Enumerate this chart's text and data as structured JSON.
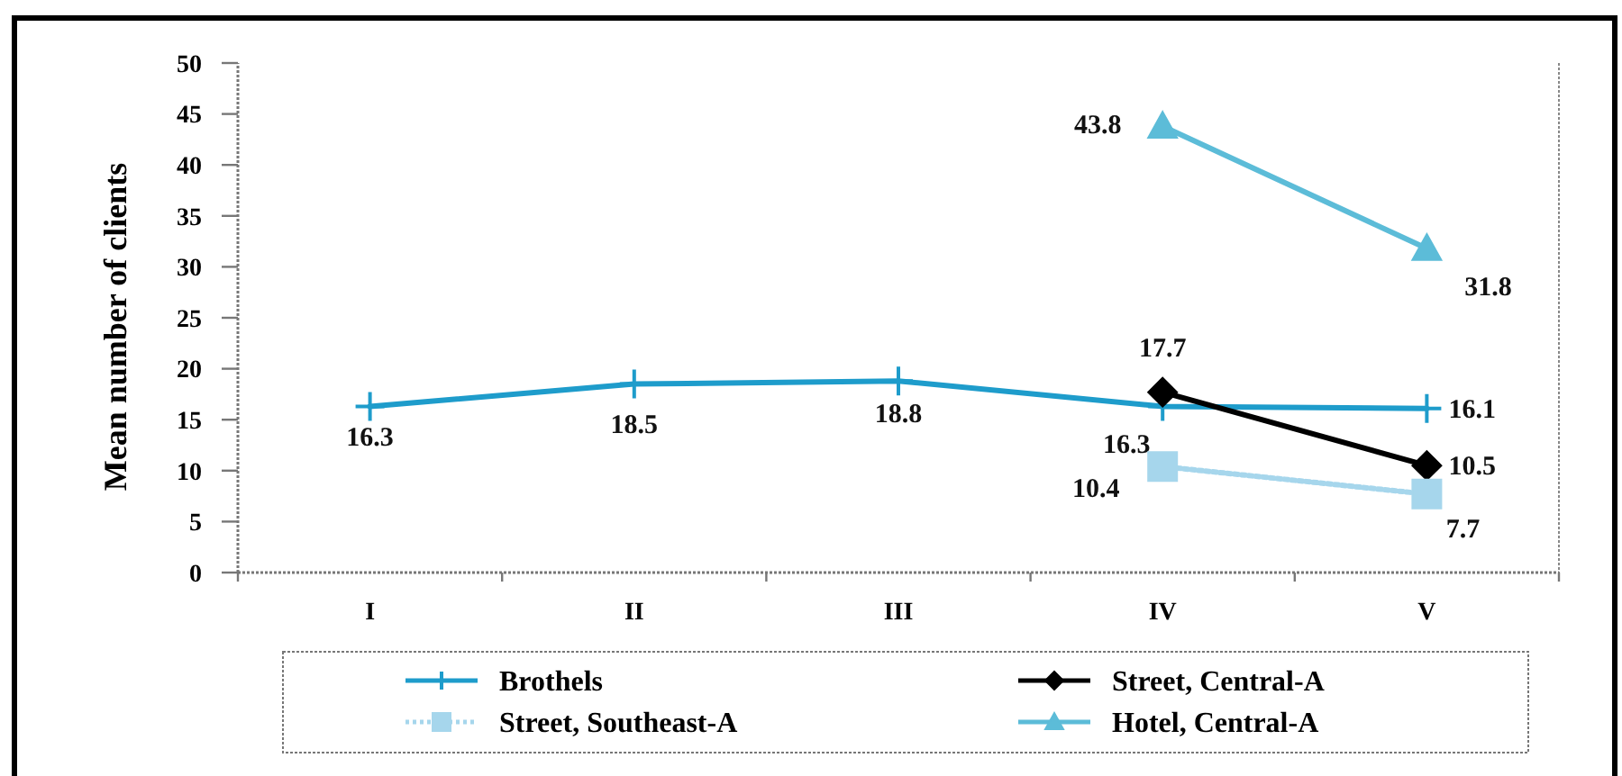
{
  "chart_data": {
    "type": "line",
    "ylabel": "Mean number of clients",
    "categories": [
      "I",
      "II",
      "III",
      "IV",
      "V"
    ],
    "series": [
      {
        "name": "Brothels",
        "color": "#1e9ccb",
        "values": [
          16.3,
          18.5,
          18.8,
          16.3,
          16.1
        ],
        "marker": "cross",
        "line_style": "solid"
      },
      {
        "name": "Street, Central-A",
        "color": "#000000",
        "values": [
          null,
          null,
          null,
          17.7,
          10.5
        ],
        "marker": "diamond",
        "line_style": "solid"
      },
      {
        "name": "Street, Southeast-A",
        "color": "#a6d6ec",
        "values": [
          null,
          null,
          null,
          10.4,
          7.7
        ],
        "marker": "square",
        "line_style": "dotted"
      },
      {
        "name": "Hotel, Central-A",
        "color": "#5cbcd8",
        "values": [
          null,
          null,
          null,
          43.8,
          31.8
        ],
        "marker": "triangle",
        "line_style": "solid"
      }
    ],
    "ylim": [
      0,
      50
    ],
    "yticks": [
      0,
      5,
      10,
      15,
      20,
      25,
      30,
      35,
      40,
      45,
      50
    ],
    "grid": false,
    "legend": "bottom",
    "data_labels": true
  }
}
